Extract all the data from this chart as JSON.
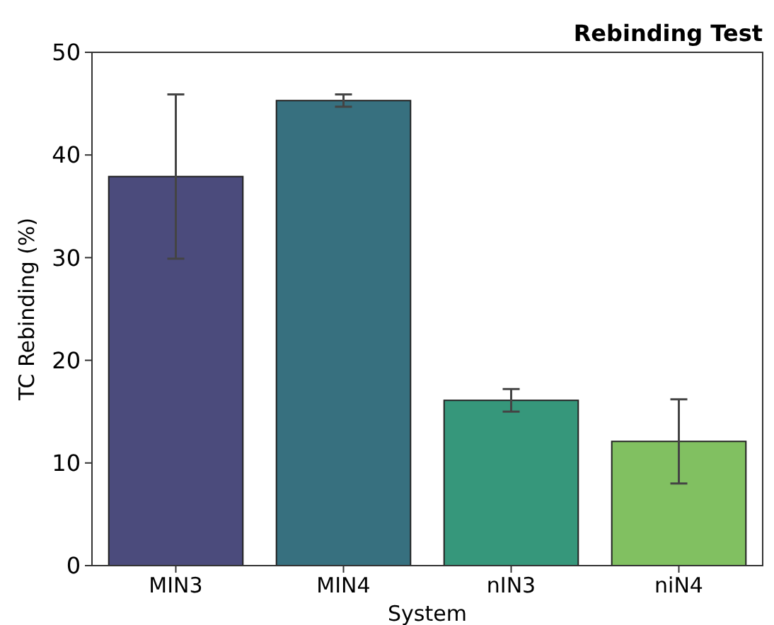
{
  "chart_data": {
    "type": "bar",
    "title": "Rebinding Test",
    "xlabel": "System",
    "ylabel": "TC Rebinding (%)",
    "categories": [
      "MIN3",
      "MIN4",
      "nIN3",
      "niN4"
    ],
    "values": [
      37.9,
      45.3,
      16.1,
      12.1
    ],
    "errors": [
      8,
      0.6,
      1.1,
      4.1
    ],
    "colors": [
      "#4b4b7c",
      "#37707f",
      "#36977b",
      "#81c061"
    ],
    "ylim": [
      0,
      50
    ],
    "yticks": [
      0,
      10,
      20,
      30,
      40,
      50
    ],
    "grid": false
  }
}
